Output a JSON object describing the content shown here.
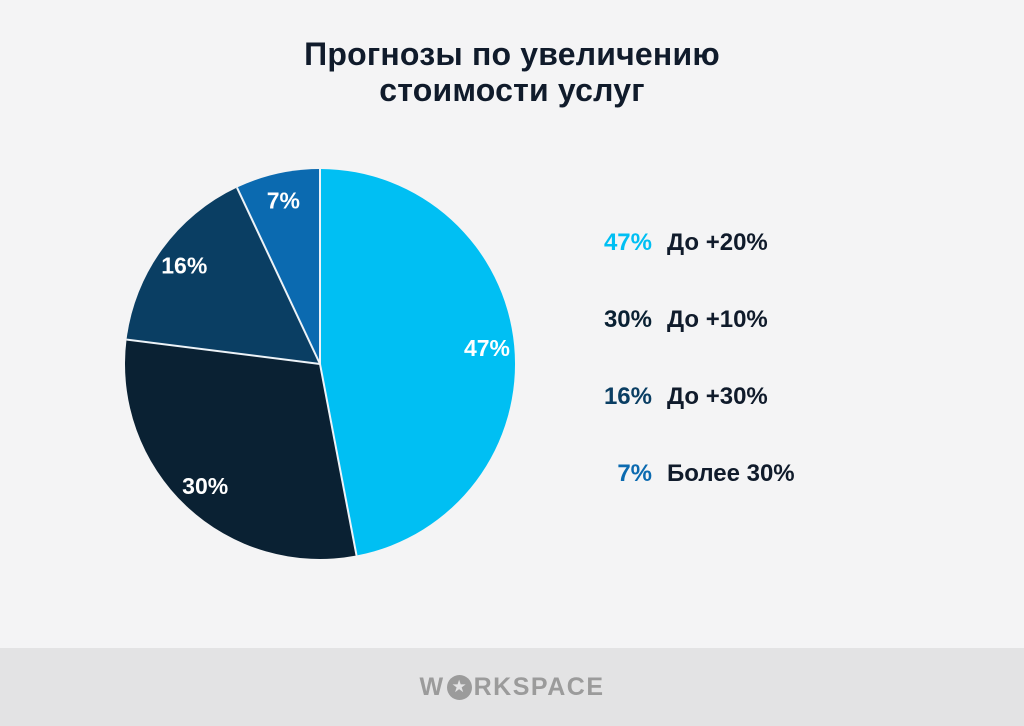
{
  "title": "Прогнозы по увеличению\nстоимости услуг",
  "chart_data": {
    "type": "pie",
    "title": "Прогнозы по увеличению стоимости услуг",
    "start_angle_deg": -90,
    "direction": "clockwise",
    "slices": [
      {
        "pct_label": "47%",
        "value": 47,
        "label": "До +20%",
        "color": "#00BFF3"
      },
      {
        "pct_label": "30%",
        "value": 30,
        "label": "До +10%",
        "color": "#0A2133"
      },
      {
        "pct_label": "16%",
        "value": 16,
        "label": "До +30%",
        "color": "#0A3E63"
      },
      {
        "pct_label": "7%",
        "value": 7,
        "label": "Более 30%",
        "color": "#0B6AB0"
      }
    ],
    "slice_label_color": "#FFFFFF",
    "slice_label_radius_factor": 0.86,
    "divider_color": "#EDF3F8",
    "legend_position": "right"
  },
  "footer": {
    "logo_prefix": "W",
    "star_icon": "★",
    "logo_suffix": "RKSPACE"
  },
  "colors": {
    "background": "#F4F4F5",
    "footer_bg": "#E3E3E4",
    "title_text": "#101B2B",
    "legend_label_text": "#101B2B",
    "logo_gray": "#9B9B9B"
  }
}
